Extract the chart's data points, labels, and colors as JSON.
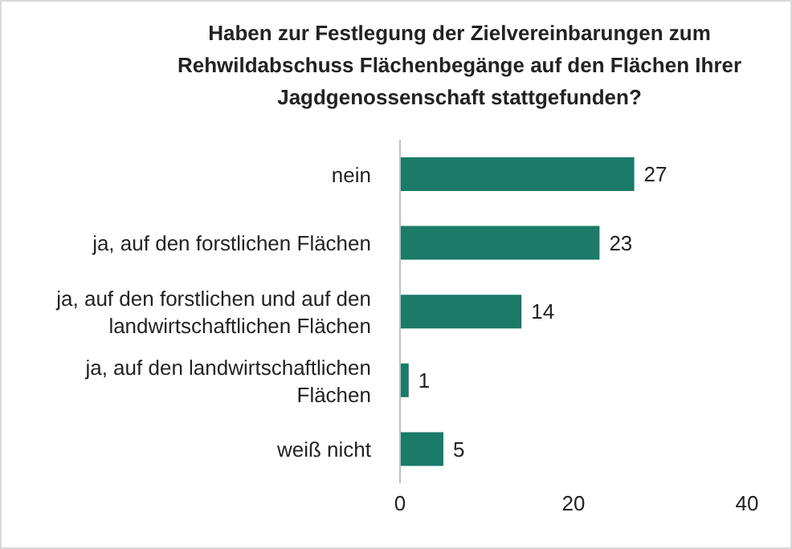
{
  "chart_data": {
    "type": "bar",
    "orientation": "horizontal",
    "title": "Haben zur Festlegung der Zielvereinbarungen zum Rehwildabschuss Flächenbegänge auf den Flächen Ihrer Jagdgenossenschaft stattgefunden?",
    "categories": [
      "nein",
      "ja, auf den forstlichen Flächen",
      "ja, auf den forstlichen und auf den landwirtschaftlichen Flächen",
      "ja, auf den landwirtschaftlichen Flächen",
      "weiß nicht"
    ],
    "values": [
      27,
      23,
      14,
      1,
      5
    ],
    "color": "#1b7a68",
    "xlim": [
      0,
      40
    ],
    "xticks": [
      0,
      20,
      40
    ],
    "grid": false,
    "data_labels": true
  }
}
